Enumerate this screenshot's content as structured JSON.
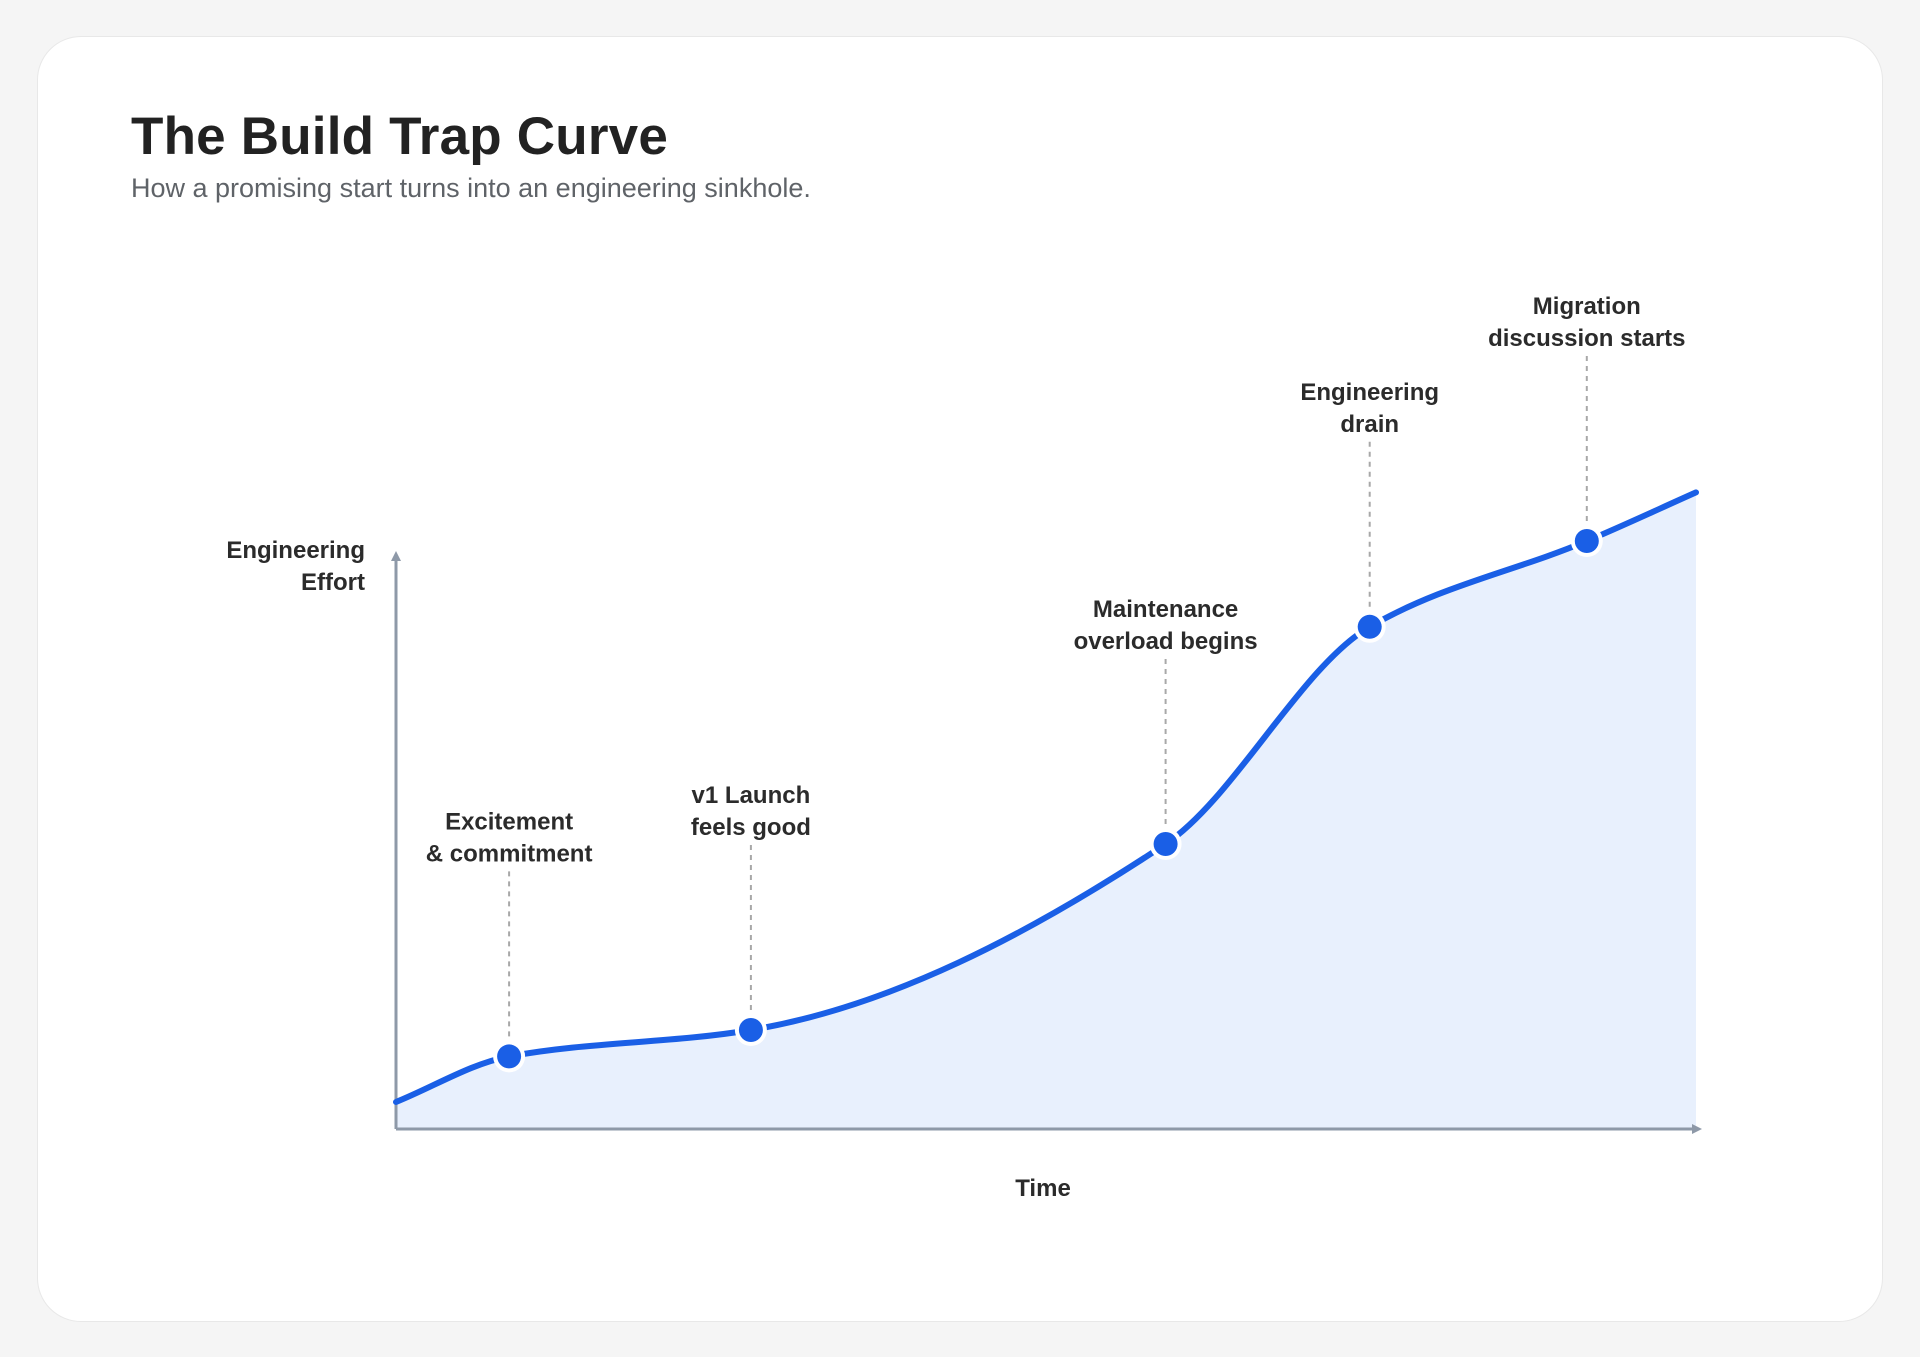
{
  "title": "The Build Trap Curve",
  "subtitle": "How a promising start turns into an engineering sinkhole.",
  "colors": {
    "curve": "#1a5fe6",
    "fill": "#e8f0fd",
    "axis": "#8e99a8",
    "leader": "#a8a8a8",
    "marker": "#1a5fe6"
  },
  "chart_data": {
    "type": "area",
    "title": "The Build Trap Curve",
    "subtitle": "How a promising start turns into an engineering sinkhole.",
    "xlabel": "Time",
    "ylabel": [
      "Engineering",
      "Effort"
    ],
    "xlim": [
      0,
      100
    ],
    "ylim": [
      0,
      100
    ],
    "grid": false,
    "legend": "none",
    "series": [
      {
        "x": [
          0,
          8.7,
          27.3,
          59.2,
          74.9,
          91.6,
          100
        ],
        "y": [
          4.5,
          12.1,
          16.5,
          47.5,
          83.7,
          98.0,
          106.1
        ]
      }
    ],
    "annotations": [
      {
        "x": 8.7,
        "y": 12.1,
        "label": [
          "Excitement",
          "& commitment"
        ]
      },
      {
        "x": 27.3,
        "y": 16.5,
        "label": [
          "v1 Launch",
          "feels good"
        ]
      },
      {
        "x": 59.2,
        "y": 47.5,
        "label": [
          "Maintenance",
          "overload begins"
        ]
      },
      {
        "x": 74.9,
        "y": 83.7,
        "label": [
          "Engineering",
          "drain"
        ]
      },
      {
        "x": 91.6,
        "y": 98.0,
        "label": [
          "Migration",
          "discussion starts"
        ]
      }
    ]
  }
}
